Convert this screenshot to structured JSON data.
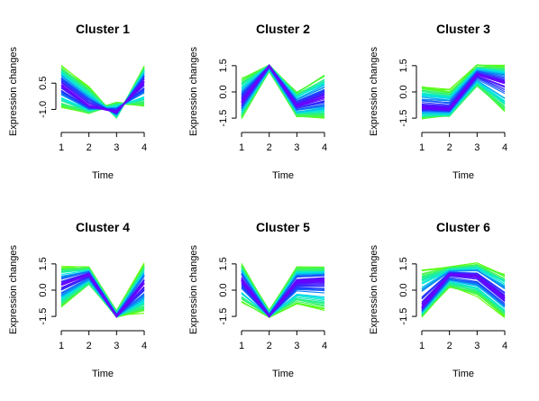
{
  "chart_data": [
    {
      "type": "line",
      "title": "Cluster 1",
      "xlabel": "Time",
      "ylabel": "Expression changes",
      "x": [
        1,
        2,
        3,
        4
      ],
      "xticks": [
        "1",
        "2",
        "3",
        "4"
      ],
      "yticks": [
        "-1.0",
        "0.5"
      ],
      "ylim": [
        -1.7,
        1.75
      ],
      "grid": false,
      "legend": "none",
      "core_profile": [
        0.4,
        -0.8,
        -1.15,
        0.6
      ],
      "low_profile": [
        -0.9,
        -1.2,
        -0.6,
        -0.9
      ],
      "high_profile": [
        1.5,
        0.3,
        -1.5,
        1.5
      ]
    },
    {
      "type": "line",
      "title": "Cluster 2",
      "xlabel": "Time",
      "ylabel": "Expression changes",
      "x": [
        1,
        2,
        3,
        4
      ],
      "xticks": [
        "1",
        "2",
        "3",
        "4"
      ],
      "yticks": [
        "-1.5",
        "0.0",
        "1.5"
      ],
      "ylim": [
        -1.7,
        1.75
      ],
      "grid": false,
      "legend": "none",
      "core_profile": [
        -0.6,
        1.5,
        -0.8,
        -0.3
      ],
      "low_profile": [
        -1.5,
        1.2,
        -1.4,
        -1.5
      ],
      "high_profile": [
        0.8,
        1.5,
        0.0,
        1.0
      ]
    },
    {
      "type": "line",
      "title": "Cluster 3",
      "xlabel": "Time",
      "ylabel": "Expression changes",
      "x": [
        1,
        2,
        3,
        4
      ],
      "xticks": [
        "1",
        "2",
        "3",
        "4"
      ],
      "yticks": [
        "-1.5",
        "0.0",
        "1.5"
      ],
      "ylim": [
        -1.7,
        1.75
      ],
      "grid": false,
      "legend": "none",
      "core_profile": [
        -0.9,
        -1.0,
        1.0,
        0.5
      ],
      "low_profile": [
        -1.5,
        -1.4,
        0.3,
        -1.2
      ],
      "high_profile": [
        0.3,
        0.1,
        1.5,
        1.5
      ]
    },
    {
      "type": "line",
      "title": "Cluster 4",
      "xlabel": "Time",
      "ylabel": "Expression changes",
      "x": [
        1,
        2,
        3,
        4
      ],
      "xticks": [
        "1",
        "2",
        "3",
        "4"
      ],
      "yticks": [
        "-1.5",
        "0.0",
        "1.5"
      ],
      "ylim": [
        -1.7,
        1.75
      ],
      "grid": false,
      "legend": "none",
      "core_profile": [
        0.3,
        0.9,
        -1.5,
        0.4
      ],
      "low_profile": [
        -1.0,
        0.3,
        -1.5,
        -1.3
      ],
      "high_profile": [
        1.3,
        1.3,
        -1.2,
        1.5
      ]
    },
    {
      "type": "line",
      "title": "Cluster 5",
      "xlabel": "Time",
      "ylabel": "Expression changes",
      "x": [
        1,
        2,
        3,
        4
      ],
      "xticks": [
        "1",
        "2",
        "3",
        "4"
      ],
      "yticks": [
        "-1.5",
        "0.0",
        "1.5"
      ],
      "ylim": [
        -1.7,
        1.75
      ],
      "grid": false,
      "legend": "none",
      "core_profile": [
        0.6,
        -1.5,
        0.5,
        0.6
      ],
      "low_profile": [
        -0.7,
        -1.5,
        -0.8,
        -1.2
      ],
      "high_profile": [
        1.5,
        -1.2,
        1.3,
        1.3
      ]
    },
    {
      "type": "line",
      "title": "Cluster 6",
      "xlabel": "Time",
      "ylabel": "Expression changes",
      "x": [
        1,
        2,
        3,
        4
      ],
      "xticks": [
        "1",
        "2",
        "3",
        "4"
      ],
      "yticks": [
        "-1.5",
        "0.0",
        "1.5"
      ],
      "ylim": [
        -1.7,
        1.75
      ],
      "grid": false,
      "legend": "none",
      "core_profile": [
        -1.0,
        0.9,
        0.8,
        -0.5
      ],
      "low_profile": [
        -1.5,
        0.2,
        -0.3,
        -1.5
      ],
      "high_profile": [
        1.2,
        1.3,
        1.5,
        0.9
      ]
    }
  ],
  "colors": {
    "core": "#6a00ff",
    "inner": "#1a3fff",
    "mid": "#00e6e6",
    "outer": "#66ff00",
    "axis": "#000000",
    "background": "#ffffff"
  }
}
